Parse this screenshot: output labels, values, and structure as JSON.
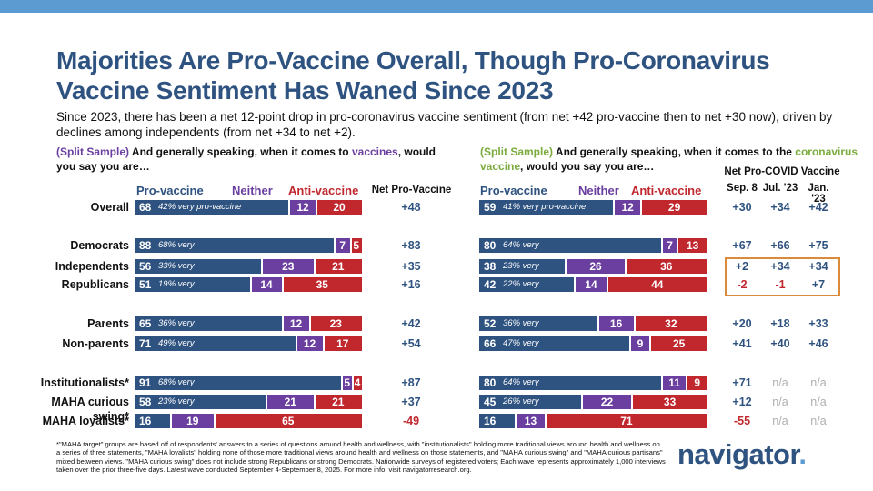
{
  "header": {
    "title": "Majorities Are Pro-Vaccine Overall, Though Pro-Coronavirus Vaccine Sentiment Has Waned Since 2023",
    "title_line1": "Majorities Are Pro-Vaccine Overall, Though Pro-Coronavirus",
    "title_line2": "Vaccine Sentiment Has Waned Since 2023",
    "subtitle": "Since 2023, there has been a net 12-point drop in pro-coronavirus vaccine sentiment (from net +42 pro-vaccine then to net +30 now), driven by declines among independents (from net +34 to net +2)."
  },
  "left_question": {
    "prefix": "(Split Sample)",
    "text_before": " And generally speaking, when it comes to ",
    "highlight": "vaccines",
    "text_after": ", would you say you are…"
  },
  "right_question": {
    "prefix": "(Split Sample)",
    "text_before": " And generally speaking, when it comes to the ",
    "highlight": "coronavirus vaccine",
    "text_after": ", would you say you are…"
  },
  "legend": {
    "pro": "Pro-vaccine",
    "neither": "Neither",
    "anti": "Anti-vaccine"
  },
  "net_header_left": "Net Pro-Vaccine",
  "net_header_right": {
    "title": "Net Pro-COVID Vaccine",
    "cols": [
      "Sep. 8",
      "Jul. '23",
      "Jan. '23"
    ]
  },
  "chart_data": [
    {
      "type": "bar",
      "title": "Vaccines",
      "stacked": true,
      "orientation": "horizontal",
      "categories": [
        "Overall",
        "Democrats",
        "Independents",
        "Republicans",
        "Parents",
        "Non-parents",
        "Institutionalists*",
        "MAHA curious swing*",
        "MAHA loyalists*"
      ],
      "series": [
        {
          "name": "Pro-vaccine",
          "values": [
            68,
            88,
            56,
            51,
            65,
            71,
            91,
            58,
            16
          ]
        },
        {
          "name": "Neither",
          "values": [
            12,
            7,
            23,
            14,
            12,
            12,
            5,
            21,
            19
          ]
        },
        {
          "name": "Anti-vaccine",
          "values": [
            20,
            5,
            21,
            35,
            23,
            17,
            4,
            21,
            65
          ]
        }
      ],
      "very_notes": [
        "42% very pro-vaccine",
        "68% very",
        "33% very",
        "19% very",
        "36% very",
        "49% very",
        "68% very",
        "23% very",
        ""
      ],
      "net": [
        "+48",
        "+83",
        "+35",
        "+16",
        "+42",
        "+54",
        "+87",
        "+37",
        "-49"
      ],
      "xlim": [
        0,
        100
      ]
    },
    {
      "type": "bar",
      "title": "Coronavirus vaccine",
      "stacked": true,
      "orientation": "horizontal",
      "categories": [
        "Overall",
        "Democrats",
        "Independents",
        "Republicans",
        "Parents",
        "Non-parents",
        "Institutionalists*",
        "MAHA curious swing*",
        "MAHA loyalists*"
      ],
      "series": [
        {
          "name": "Pro-vaccine",
          "values": [
            59,
            80,
            38,
            42,
            52,
            66,
            80,
            45,
            16
          ]
        },
        {
          "name": "Neither",
          "values": [
            12,
            7,
            26,
            14,
            16,
            9,
            11,
            22,
            13
          ]
        },
        {
          "name": "Anti-vaccine",
          "values": [
            29,
            13,
            36,
            44,
            32,
            25,
            9,
            33,
            71
          ]
        }
      ],
      "very_notes": [
        "41% very pro-vaccine",
        "64% very",
        "23% very",
        "22% very",
        "36% very",
        "47% very",
        "64% very",
        "26% very",
        ""
      ],
      "net_sep8": [
        "+30",
        "+67",
        "+2",
        "-2",
        "+20",
        "+41",
        "+71",
        "+12",
        "-55"
      ],
      "net_jul23": [
        "+34",
        "+66",
        "+34",
        "-1",
        "+18",
        "+40",
        "n/a",
        "n/a",
        "n/a"
      ],
      "net_jan23": [
        "+42",
        "+75",
        "+34",
        "+7",
        "+33",
        "+46",
        "n/a",
        "n/a",
        "n/a"
      ],
      "xlim": [
        0,
        100
      ]
    }
  ],
  "colors": {
    "pro": "#2f5380",
    "neither": "#6b3fa0",
    "anti": "#c0282e",
    "na": "#b0b0b0",
    "highlight_box": "#d98a3b"
  },
  "footnote": "*\"MAHA target\" groups are based off of respondents' answers to a series of questions around health and wellness, with \"institutionalists\" holding more traditional views around health and wellness on a series of three statements, \"MAHA loyalists\" holding none of those more traditional views around health and wellness on those statements, and \"MAHA curious swing\" and \"MAHA curious partisans\" mixed between views. \"MAHA curious swing\" does not include strong Republicans or strong Democrats. Nationwide surveys of registered voters; Each wave represents approximately 1,000 interviews taken over the prior three-five days. Latest wave conducted September 4-September 8, 2025. For more info, visit navigatorresearch.org.",
  "logo": {
    "text": "navigator",
    "dot": "."
  }
}
